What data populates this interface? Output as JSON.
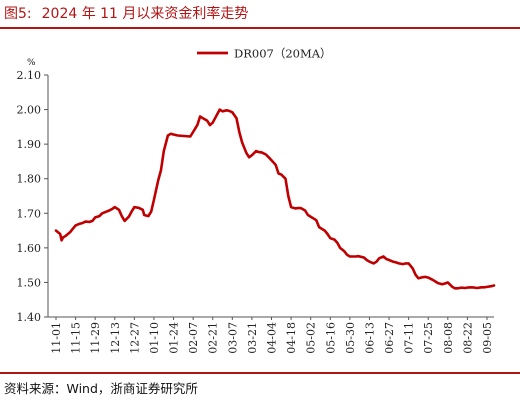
{
  "figure": {
    "number": "图5:",
    "title": "2024 年 11 月以来资金利率走势",
    "source": "资料来源：Wind，浙商证券研究所"
  },
  "chart_data": {
    "type": "line",
    "ylabel": "%",
    "ylim": [
      1.4,
      2.1
    ],
    "yticks": [
      "2.10",
      "2.00",
      "1.90",
      "1.80",
      "1.70",
      "1.60",
      "1.50",
      "1.40"
    ],
    "grid": false,
    "legend_position": "top-center",
    "series_color": "#c00000",
    "x_tick_labels": [
      "11-01",
      "11-15",
      "11-29",
      "12-13",
      "12-27",
      "01-10",
      "01-24",
      "02-07",
      "02-21",
      "03-07",
      "03-21",
      "04-04",
      "04-18",
      "05-02",
      "05-16",
      "05-30",
      "06-13",
      "06-27",
      "07-11",
      "07-25",
      "08-08",
      "08-22",
      "09-05"
    ],
    "series": [
      {
        "name": "DR007（20MA）",
        "points": [
          [
            "11-01",
            1.65
          ],
          [
            "11-04",
            1.64
          ],
          [
            "11-05",
            1.622
          ],
          [
            "11-06",
            1.63
          ],
          [
            "11-08",
            1.635
          ],
          [
            "11-11",
            1.645
          ],
          [
            "11-13",
            1.655
          ],
          [
            "11-15",
            1.665
          ],
          [
            "11-18",
            1.67
          ],
          [
            "11-20",
            1.672
          ],
          [
            "11-22",
            1.676
          ],
          [
            "11-25",
            1.675
          ],
          [
            "11-27",
            1.678
          ],
          [
            "11-29",
            1.688
          ],
          [
            "12-02",
            1.692
          ],
          [
            "12-04",
            1.7
          ],
          [
            "12-06",
            1.703
          ],
          [
            "12-09",
            1.708
          ],
          [
            "12-11",
            1.712
          ],
          [
            "12-13",
            1.718
          ],
          [
            "12-16",
            1.71
          ],
          [
            "12-18",
            1.692
          ],
          [
            "12-20",
            1.678
          ],
          [
            "12-23",
            1.69
          ],
          [
            "12-25",
            1.705
          ],
          [
            "12-27",
            1.718
          ],
          [
            "12-30",
            1.716
          ],
          [
            "01-02",
            1.71
          ],
          [
            "01-03",
            1.695
          ],
          [
            "01-06",
            1.692
          ],
          [
            "01-08",
            1.705
          ],
          [
            "01-10",
            1.74
          ],
          [
            "01-13",
            1.795
          ],
          [
            "01-15",
            1.825
          ],
          [
            "01-17",
            1.88
          ],
          [
            "01-20",
            1.925
          ],
          [
            "01-22",
            1.93
          ],
          [
            "01-24",
            1.928
          ],
          [
            "01-27",
            1.925
          ],
          [
            "02-05",
            1.922
          ],
          [
            "02-07",
            1.935
          ],
          [
            "02-10",
            1.955
          ],
          [
            "02-12",
            1.98
          ],
          [
            "02-14",
            1.975
          ],
          [
            "02-17",
            1.968
          ],
          [
            "02-19",
            1.955
          ],
          [
            "02-21",
            1.962
          ],
          [
            "02-24",
            1.985
          ],
          [
            "02-26",
            2.0
          ],
          [
            "02-28",
            1.995
          ],
          [
            "03-03",
            1.998
          ],
          [
            "03-05",
            1.996
          ],
          [
            "03-07",
            1.992
          ],
          [
            "03-10",
            1.975
          ],
          [
            "03-12",
            1.935
          ],
          [
            "03-14",
            1.905
          ],
          [
            "03-17",
            1.875
          ],
          [
            "03-19",
            1.862
          ],
          [
            "03-21",
            1.868
          ],
          [
            "03-24",
            1.88
          ],
          [
            "03-26",
            1.877
          ],
          [
            "03-28",
            1.876
          ],
          [
            "03-31",
            1.87
          ],
          [
            "04-02",
            1.862
          ],
          [
            "04-03",
            1.858
          ],
          [
            "04-07",
            1.84
          ],
          [
            "04-09",
            1.815
          ],
          [
            "04-11",
            1.812
          ],
          [
            "04-14",
            1.8
          ],
          [
            "04-16",
            1.75
          ],
          [
            "04-18",
            1.718
          ],
          [
            "04-21",
            1.714
          ],
          [
            "04-23",
            1.715
          ],
          [
            "04-25",
            1.715
          ],
          [
            "04-28",
            1.708
          ],
          [
            "04-30",
            1.695
          ],
          [
            "05-06",
            1.68
          ],
          [
            "05-08",
            1.66
          ],
          [
            "05-12",
            1.65
          ],
          [
            "05-14",
            1.64
          ],
          [
            "05-16",
            1.628
          ],
          [
            "05-19",
            1.624
          ],
          [
            "05-21",
            1.615
          ],
          [
            "05-23",
            1.6
          ],
          [
            "05-26",
            1.59
          ],
          [
            "05-28",
            1.58
          ],
          [
            "05-30",
            1.575
          ],
          [
            "06-03",
            1.575
          ],
          [
            "06-05",
            1.576
          ],
          [
            "06-09",
            1.572
          ],
          [
            "06-11",
            1.565
          ],
          [
            "06-13",
            1.56
          ],
          [
            "06-16",
            1.555
          ],
          [
            "06-18",
            1.56
          ],
          [
            "06-20",
            1.57
          ],
          [
            "06-23",
            1.575
          ],
          [
            "06-25",
            1.568
          ],
          [
            "06-27",
            1.565
          ],
          [
            "06-30",
            1.56
          ],
          [
            "07-02",
            1.558
          ],
          [
            "07-04",
            1.555
          ],
          [
            "07-07",
            1.553
          ],
          [
            "07-09",
            1.555
          ],
          [
            "07-11",
            1.555
          ],
          [
            "07-14",
            1.54
          ],
          [
            "07-16",
            1.522
          ],
          [
            "07-18",
            1.512
          ],
          [
            "07-21",
            1.515
          ],
          [
            "07-23",
            1.516
          ],
          [
            "07-25",
            1.514
          ],
          [
            "07-28",
            1.508
          ],
          [
            "07-30",
            1.503
          ],
          [
            "08-01",
            1.498
          ],
          [
            "08-04",
            1.495
          ],
          [
            "08-06",
            1.497
          ],
          [
            "08-08",
            1.5
          ],
          [
            "08-11",
            1.488
          ],
          [
            "08-13",
            1.483
          ],
          [
            "08-15",
            1.483
          ],
          [
            "08-18",
            1.485
          ],
          [
            "08-20",
            1.484
          ],
          [
            "08-22",
            1.485
          ],
          [
            "08-25",
            1.486
          ],
          [
            "08-27",
            1.485
          ],
          [
            "08-29",
            1.484
          ],
          [
            "09-01",
            1.486
          ],
          [
            "09-03",
            1.486
          ],
          [
            "09-05",
            1.487
          ],
          [
            "09-08",
            1.489
          ],
          [
            "09-10",
            1.491
          ]
        ]
      }
    ]
  }
}
